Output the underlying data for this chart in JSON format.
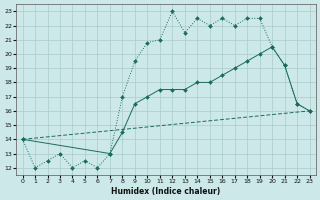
{
  "xlabel": "Humidex (Indice chaleur)",
  "bg_color": "#cce8e8",
  "grid_color": "#aacccc",
  "line_color": "#1a6b5a",
  "xlim": [
    -0.5,
    23.5
  ],
  "ylim": [
    11.5,
    23.5
  ],
  "yticks": [
    12,
    13,
    14,
    15,
    16,
    17,
    18,
    19,
    20,
    21,
    22,
    23
  ],
  "xticks": [
    0,
    1,
    2,
    3,
    4,
    5,
    6,
    7,
    8,
    9,
    10,
    11,
    12,
    13,
    14,
    15,
    16,
    17,
    18,
    19,
    20,
    21,
    22,
    23
  ],
  "line1_x": [
    0,
    1,
    2,
    3,
    4,
    5,
    6,
    7,
    8,
    9,
    10,
    11,
    12,
    13,
    14,
    15,
    16,
    17,
    18,
    19,
    20,
    21,
    22,
    23
  ],
  "line1_y": [
    14,
    12,
    12.5,
    13,
    12,
    12.5,
    12,
    13,
    17,
    19.5,
    20.8,
    21,
    23,
    21.5,
    22.5,
    22,
    22.5,
    22,
    22.5,
    22.5,
    20.5,
    19.2,
    16.5,
    16
  ],
  "line2_x": [
    0,
    7,
    8,
    9,
    10,
    11,
    12,
    13,
    14,
    15,
    16,
    17,
    18,
    19,
    20,
    21,
    22,
    23
  ],
  "line2_y": [
    14,
    13,
    14.5,
    16.5,
    17,
    17.5,
    17.5,
    17.5,
    18,
    18,
    18.5,
    19,
    19.5,
    20,
    20.5,
    19.2,
    16.5,
    16
  ],
  "line3_x": [
    0,
    23
  ],
  "line3_y": [
    14,
    16
  ]
}
